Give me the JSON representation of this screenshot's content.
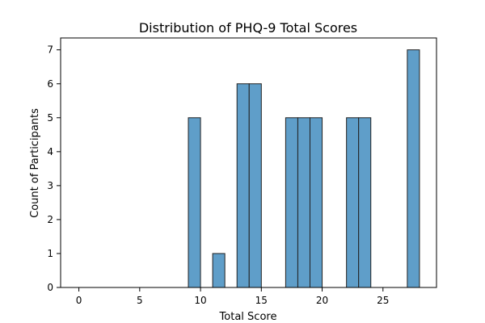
{
  "chart_data": {
    "type": "bar",
    "title": "Distribution of PHQ-9 Total Scores",
    "xlabel": "Total Score",
    "ylabel": "Count of Participants",
    "bar_color": "#5f9ec9",
    "edge_color": "#222222",
    "bin_width": 1,
    "xlim": [
      -1.5,
      29.4
    ],
    "ylim": [
      0,
      7.35
    ],
    "x_ticks": [
      0,
      5,
      10,
      15,
      20,
      25
    ],
    "y_ticks": [
      0,
      1,
      2,
      3,
      4,
      5,
      6,
      7
    ],
    "bins": [
      {
        "start": 9,
        "value": 5
      },
      {
        "start": 11,
        "value": 1
      },
      {
        "start": 13,
        "value": 6
      },
      {
        "start": 14,
        "value": 6
      },
      {
        "start": 17,
        "value": 5
      },
      {
        "start": 18,
        "value": 5
      },
      {
        "start": 19,
        "value": 5
      },
      {
        "start": 22,
        "value": 5
      },
      {
        "start": 23,
        "value": 5
      },
      {
        "start": 27,
        "value": 7
      }
    ],
    "grid": false,
    "legend": "none"
  }
}
